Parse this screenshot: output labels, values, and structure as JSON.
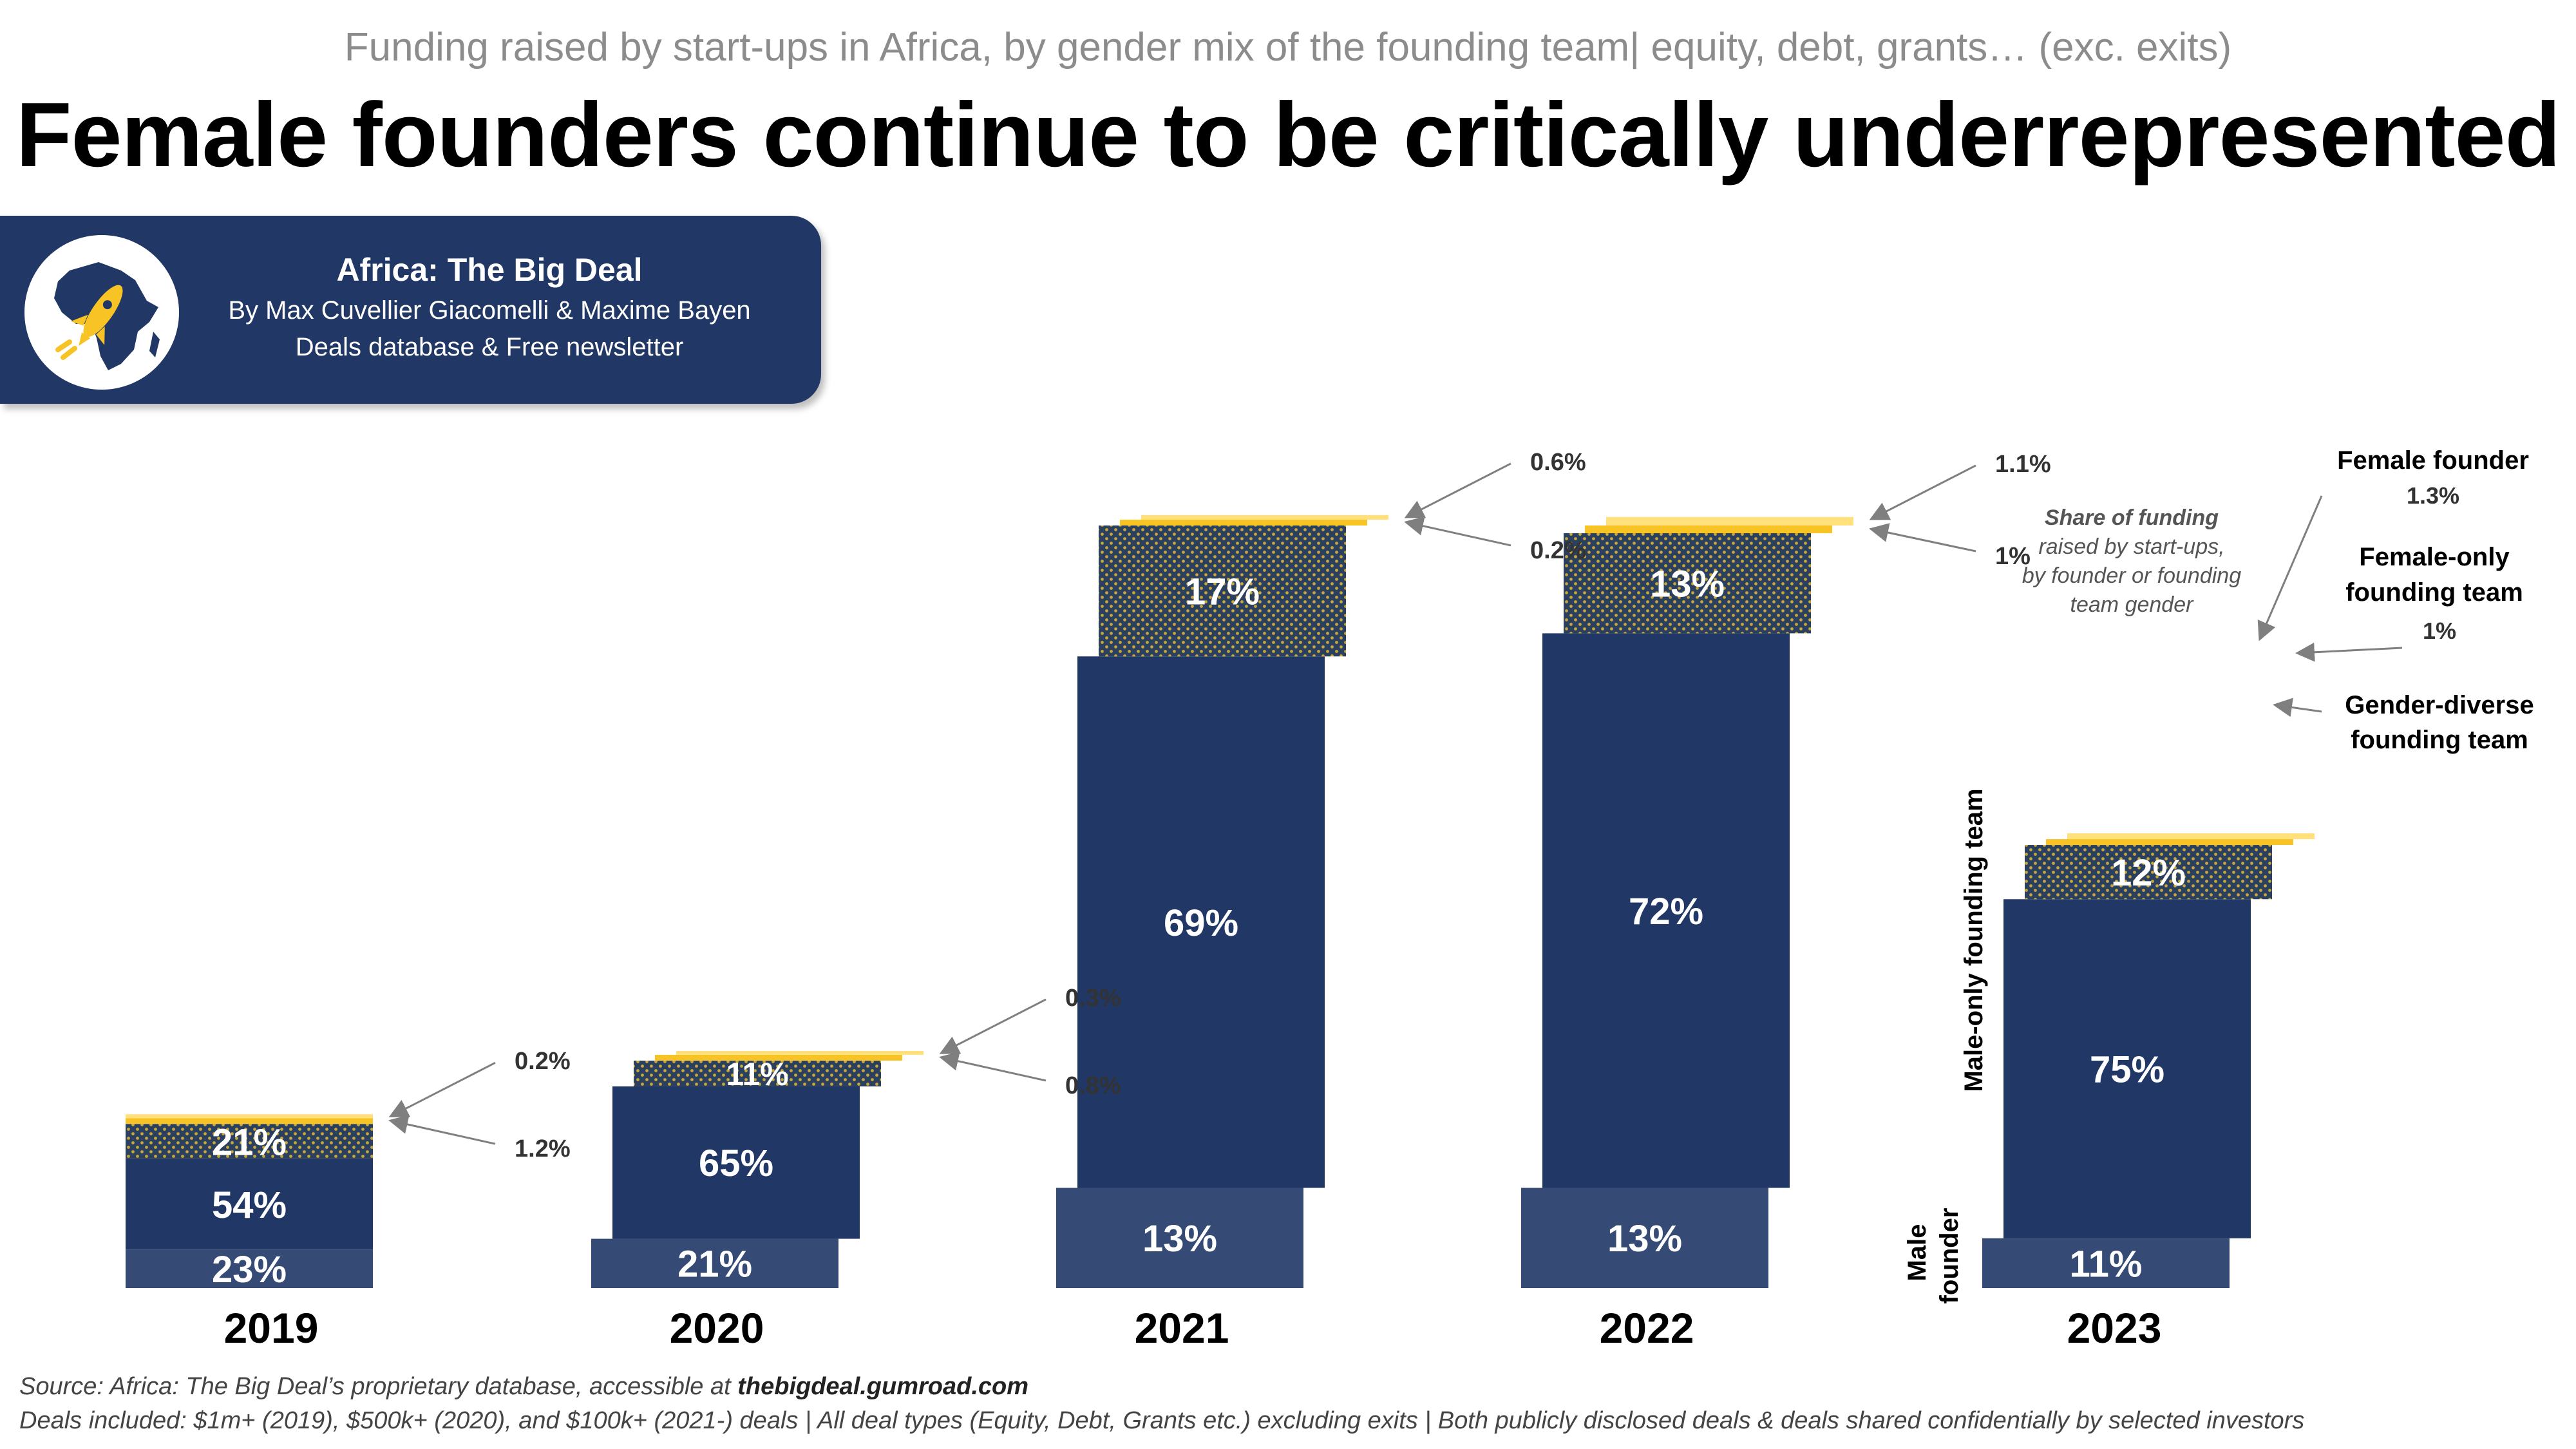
{
  "header": {
    "subtitle": "Funding raised by start-ups in Africa, by gender mix of the founding team| equity, debt, grants… (exc. exits)",
    "title": "Female founders continue to be critically underrepresented"
  },
  "brand": {
    "name": "Africa: The Big Deal",
    "authors": "By Max Cuvellier Giacomelli & Maxime Bayen",
    "tagline": "Deals database & Free newsletter",
    "logo_icon": "africa-rocket-icon",
    "colors": {
      "navy": "#213765",
      "yellow": "#F7C325",
      "white": "#FFFFFF"
    }
  },
  "annotations": {
    "share_note": [
      "Share of funding",
      "raised by start-ups,",
      "by founder or founding",
      "team gender"
    ],
    "series_labels": {
      "female_founder": "Female founder",
      "female_only": [
        "Female-only",
        "founding team"
      ],
      "gender_diverse": [
        "Gender-diverse",
        "founding team"
      ],
      "male_only": "Male-only founding team",
      "male_founder": [
        "Male",
        "founder"
      ]
    }
  },
  "footer": {
    "source_prefix": "Source: Africa: The Big Deal’s proprietary database, accessible at ",
    "source_link": "thebigdeal.gumroad.com",
    "deals_note": "Deals included:  $1m+ (2019), $500k+ (2020), and $100k+ (2021-) deals | All deal types (Equity, Debt, Grants etc.) excluding exits | Both publicly disclosed deals & deals shared confidentially by selected investors"
  },
  "chart_data": {
    "type": "bar",
    "stacked": true,
    "categories": [
      "2019",
      "2020",
      "2021",
      "2022",
      "2023"
    ],
    "series": [
      {
        "name": "Male founder",
        "values": [
          23,
          21,
          13,
          13,
          11
        ],
        "labels": [
          "23%",
          "21%",
          "13%",
          "13%",
          "11%"
        ],
        "color": "#354B76"
      },
      {
        "name": "Male-only founding team",
        "values": [
          54,
          65,
          69,
          72,
          75
        ],
        "labels": [
          "54%",
          "65%",
          "69%",
          "72%",
          "75%"
        ],
        "color": "#213765"
      },
      {
        "name": "Gender-diverse founding team",
        "values": [
          21,
          11,
          17,
          13,
          12
        ],
        "labels": [
          "21%",
          "11%",
          "17%",
          "13%",
          "12%"
        ],
        "color": "#2B3F5E",
        "pattern": "yellow-dots"
      },
      {
        "name": "Female-only founding team",
        "values": [
          1.2,
          0.8,
          0.2,
          1,
          1
        ],
        "labels": [
          "1.2%",
          "0.8%",
          "0.2%",
          "1%",
          "1%"
        ],
        "color": "#F7C325"
      },
      {
        "name": "Female founder",
        "values": [
          0.2,
          0.3,
          0.6,
          1.1,
          1.3
        ],
        "labels": [
          "0.2%",
          "0.3%",
          "0.6%",
          "1.1%",
          "1.3%"
        ],
        "color": "#FFE07A"
      }
    ],
    "relative_funding_total": [
      1.0,
      1.4,
      4.6,
      4.6,
      2.7
    ],
    "legend": "annotated-right"
  }
}
